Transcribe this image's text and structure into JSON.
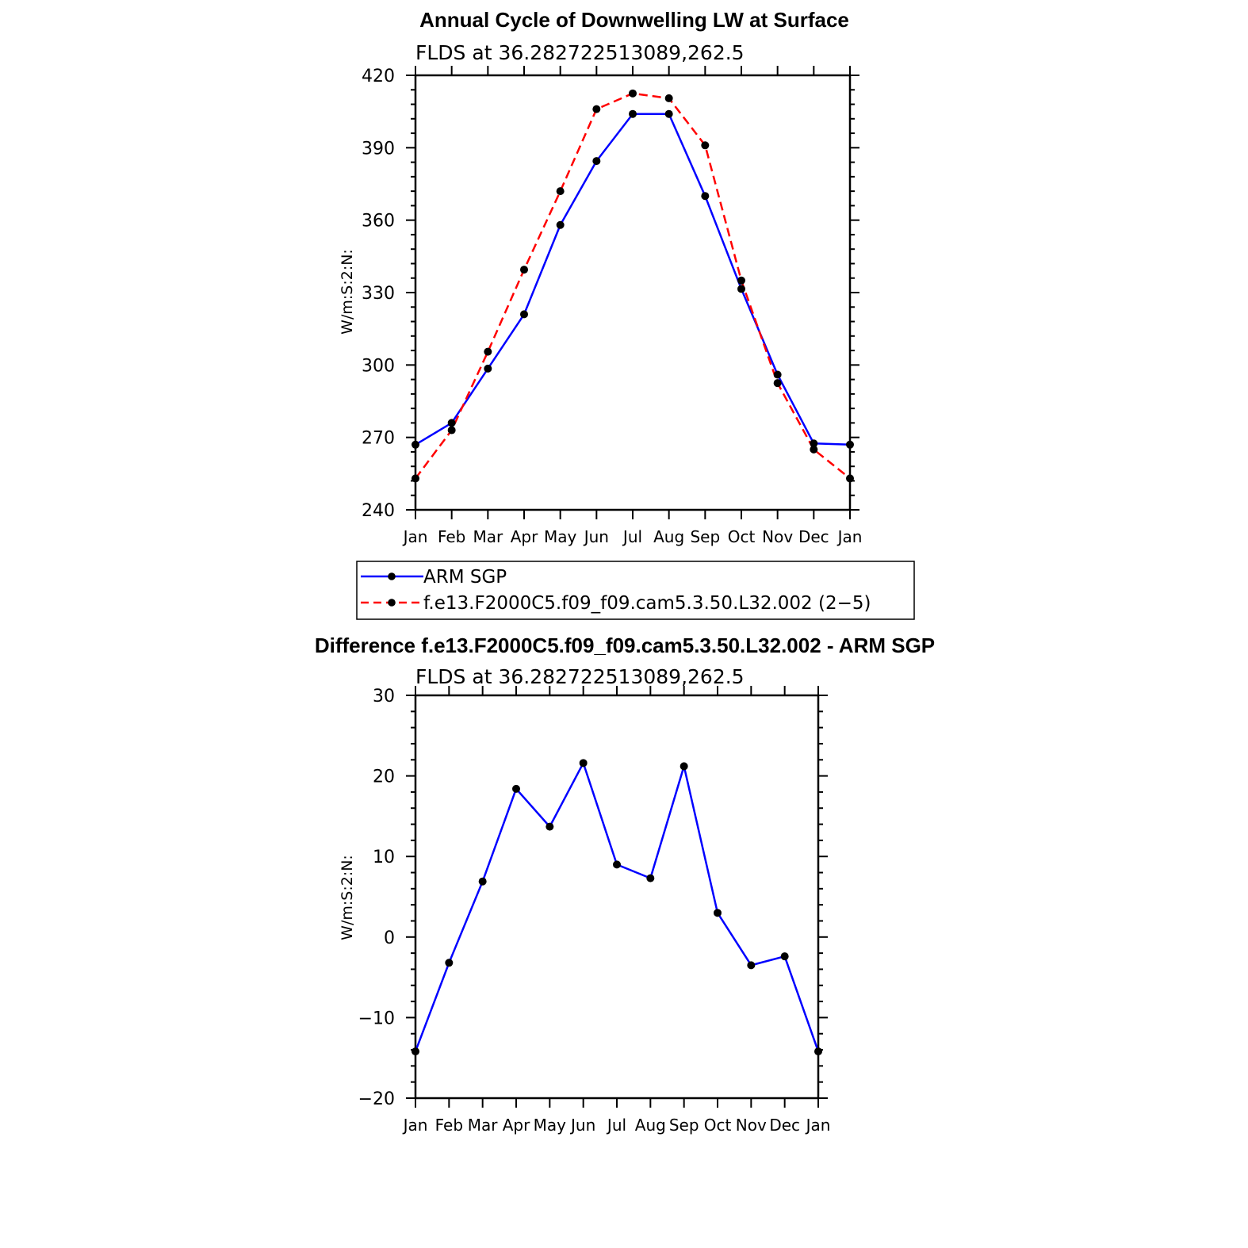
{
  "chart_data": [
    {
      "type": "line",
      "title": "Annual Cycle of Downwelling LW at Surface",
      "subtitle": "FLDS at 36.282722513089,262.5",
      "ylabel": "W/m:S:2:N:",
      "xlabel": "",
      "categories": [
        "Jan",
        "Feb",
        "Mar",
        "Apr",
        "May",
        "Jun",
        "Jul",
        "Aug",
        "Sep",
        "Oct",
        "Nov",
        "Dec",
        "Jan"
      ],
      "ylim": [
        240,
        420
      ],
      "yticks": [
        240,
        270,
        300,
        330,
        360,
        390,
        420
      ],
      "yticklabels": [
        "240",
        "270",
        "300",
        "330",
        "360",
        "390",
        "420"
      ],
      "series": [
        {
          "name": "ARM SGP",
          "color": "#0000ff",
          "dash": "solid",
          "values": [
            267,
            276,
            298.5,
            321,
            358,
            384.5,
            404,
            404,
            370,
            331.5,
            296,
            267.5,
            267
          ]
        },
        {
          "name": "f.e13.F2000C5.f09_f09.cam5.3.50.L32.002 (2−5)",
          "color": "#ff0000",
          "dash": "dashed",
          "values": [
            253,
            273,
            305.5,
            339.5,
            372,
            406,
            412.5,
            410.5,
            391,
            335,
            292.5,
            265,
            253
          ]
        }
      ],
      "legend_position": "bottom"
    },
    {
      "type": "line",
      "title": "Difference f.e13.F2000C5.f09_f09.cam5.3.50.L32.002 - ARM SGP",
      "subtitle": "FLDS at 36.282722513089,262.5",
      "ylabel": "W/m:S:2:N:",
      "xlabel": "",
      "categories": [
        "Jan",
        "Feb",
        "Mar",
        "Apr",
        "May",
        "Jun",
        "Jul",
        "Aug",
        "Sep",
        "Oct",
        "Nov",
        "Dec",
        "Jan"
      ],
      "ylim": [
        -20,
        30
      ],
      "yticks": [
        -20,
        -10,
        0,
        10,
        20,
        30
      ],
      "yticklabels": [
        "−20",
        "−10",
        "0",
        "10",
        "20",
        "30"
      ],
      "series": [
        {
          "color": "#0000ff",
          "dash": "solid",
          "values": [
            -14.2,
            -3.2,
            6.9,
            18.4,
            13.7,
            21.6,
            9,
            7.3,
            21.2,
            3,
            -3.5,
            -2.4,
            -14.2
          ]
        }
      ]
    }
  ]
}
